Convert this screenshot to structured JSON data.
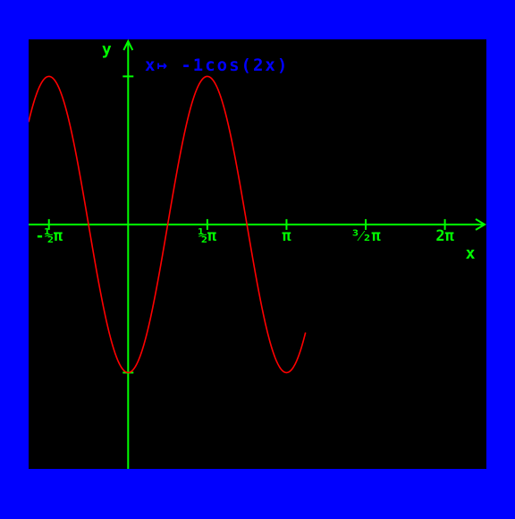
{
  "chart_data": {
    "type": "line",
    "title": "x↦  -1cos(2x)",
    "xlabel": "x",
    "ylabel": "y",
    "xlim": [
      -0.6283,
      2.2619
    ],
    "ylim": [
      -1.65,
      1.25
    ],
    "x_ticks": [
      {
        "value": -0.5,
        "label": "-½π"
      },
      {
        "value": 0.5,
        "label": "½π"
      },
      {
        "value": 1.0,
        "label": "π"
      },
      {
        "value": 1.5,
        "label": "³⁄₂π"
      },
      {
        "value": 2.0,
        "label": "2π"
      }
    ],
    "y_ticks": [
      1,
      -1
    ],
    "x_unit": "π",
    "grid": false,
    "legend": "none",
    "series": [
      {
        "expression": "-1cos(2x)",
        "x_range": [
          -0.6283,
          1.12
        ],
        "points": [
          [
            -0.6,
            0.81
          ],
          [
            -0.5,
            1.0
          ],
          [
            -0.4,
            0.81
          ],
          [
            -0.3,
            0.31
          ],
          [
            -0.25,
            0.0
          ],
          [
            -0.2,
            -0.31
          ],
          [
            -0.1,
            -0.81
          ],
          [
            0.0,
            -1.0
          ],
          [
            0.1,
            -0.81
          ],
          [
            0.2,
            -0.31
          ],
          [
            0.25,
            0.0
          ],
          [
            0.3,
            0.31
          ],
          [
            0.4,
            0.81
          ],
          [
            0.5,
            1.0
          ],
          [
            0.6,
            0.81
          ],
          [
            0.7,
            0.31
          ],
          [
            0.75,
            0.0
          ],
          [
            0.8,
            -0.31
          ],
          [
            0.9,
            -0.81
          ],
          [
            1.0,
            -1.0
          ],
          [
            1.1,
            -0.81
          ]
        ],
        "color": "#ff0000"
      }
    ]
  },
  "colors": {
    "border": "#0000ff",
    "background": "#000000",
    "axes": "#00ff00",
    "curve": "#ff0000",
    "title": "#0000ff"
  }
}
